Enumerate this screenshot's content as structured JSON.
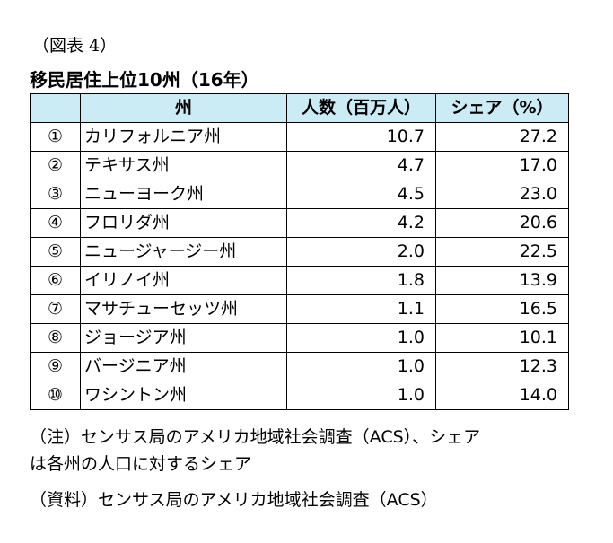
{
  "figure_label": "（図表 4）",
  "table_title": "移民居住上位10州（16年）",
  "headers": {
    "rank": "",
    "state": "州",
    "people": "人数（百万人）",
    "share": "シェア（%）"
  },
  "rows": [
    {
      "rank": "①",
      "state": "カリフォルニア州",
      "people": "10.7",
      "share": "27.2"
    },
    {
      "rank": "②",
      "state": "テキサス州",
      "people": "4.7",
      "share": "17.0"
    },
    {
      "rank": "③",
      "state": "ニューヨーク州",
      "people": "4.5",
      "share": "23.0"
    },
    {
      "rank": "④",
      "state": "フロリダ州",
      "people": "4.2",
      "share": "20.6"
    },
    {
      "rank": "⑤",
      "state": "ニュージャージー州",
      "people": "2.0",
      "share": "22.5"
    },
    {
      "rank": "⑥",
      "state": "イリノイ州",
      "people": "1.8",
      "share": "13.9"
    },
    {
      "rank": "⑦",
      "state": "マサチューセッツ州",
      "people": "1.1",
      "share": "16.5"
    },
    {
      "rank": "⑧",
      "state": "ジョージア州",
      "people": "1.0",
      "share": "10.1"
    },
    {
      "rank": "⑨",
      "state": "バージニア州",
      "people": "1.0",
      "share": "12.3"
    },
    {
      "rank": "⑩",
      "state": "ワシントン州",
      "people": "1.0",
      "share": "14.0"
    }
  ],
  "note_line1": "（注）センサス局のアメリカ地域社会調査（ACS）、シェア",
  "note_line2": "は各州の人口に対するシェア",
  "source": "（資料）センサス局のアメリカ地域社会調査（ACS）"
}
